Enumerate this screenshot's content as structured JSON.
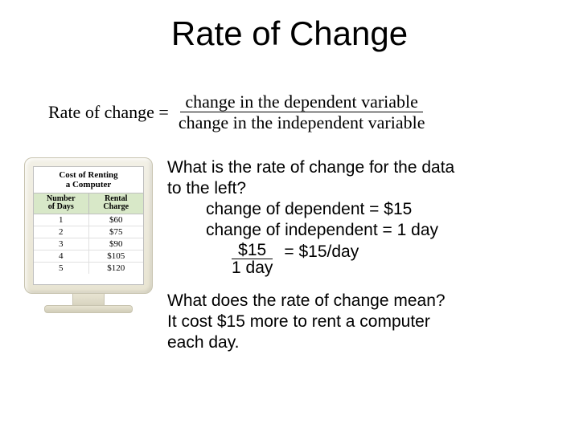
{
  "title": "Rate of Change",
  "formula": {
    "left": "Rate of change =",
    "numerator": "change in the dependent variable",
    "denominator": "change in the independent variable"
  },
  "computer": {
    "screen_title_line1": "Cost of Renting",
    "screen_title_line2": "a Computer",
    "col1_header_line1": "Number",
    "col1_header_line2": "of Days",
    "col2_header_line1": "Rental",
    "col2_header_line2": "Charge",
    "rows": [
      {
        "days": "1",
        "charge": "$60"
      },
      {
        "days": "2",
        "charge": "$75"
      },
      {
        "days": "3",
        "charge": "$90"
      },
      {
        "days": "4",
        "charge": "$105"
      },
      {
        "days": "5",
        "charge": "$120"
      }
    ],
    "monitor_bg": "#ece8d8",
    "header_bg": "#d8e8c8"
  },
  "body": {
    "q1_line1": "What is the rate of change for the data",
    "q1_line2": "to the left?",
    "dep_line": "change of dependent = $15",
    "indep_line": "change of independent = 1 day",
    "frac_num": "$15",
    "frac_den": "1 day",
    "frac_result": "= $15/day",
    "q2": "What does the rate of change mean?",
    "ans_line1": "It cost $15 more to rent a computer",
    "ans_line2": "each day."
  },
  "style": {
    "title_fontsize": 42,
    "body_fontsize": 21,
    "formula_fontsize": 22,
    "text_color": "#000000",
    "background": "#ffffff"
  }
}
